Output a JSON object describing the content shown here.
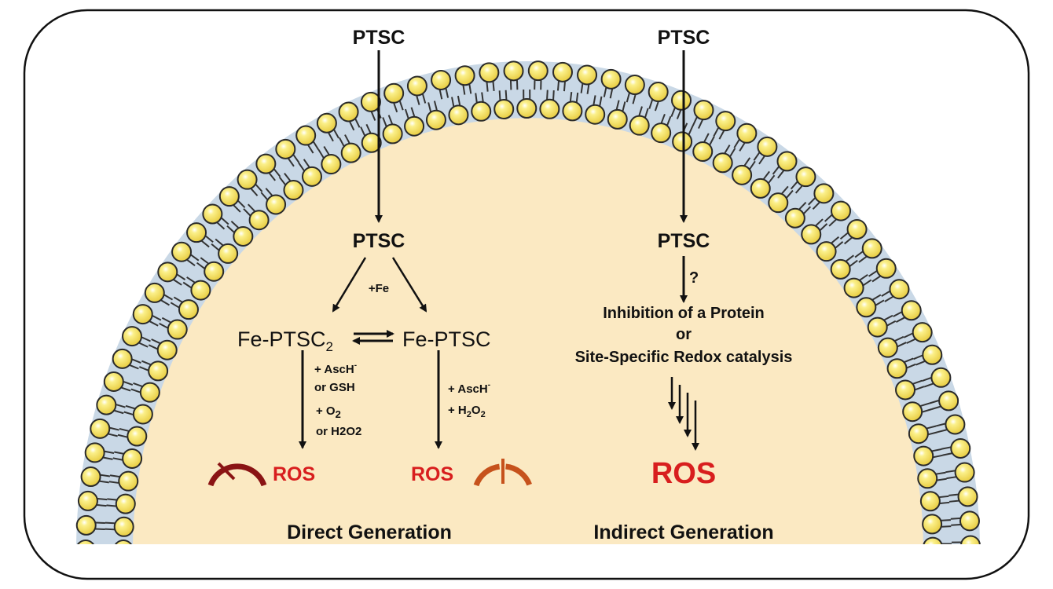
{
  "left_pathway": {
    "top_label": "PTSC",
    "inner_label": "PTSC",
    "fe_label": "+Fe",
    "complex_2": "Fe-PTSC",
    "complex_2_sub": "2",
    "complex_1": "Fe-PTSC",
    "cond_left": [
      "+ AscH",
      "or GSH",
      "+ O",
      "or H2O2"
    ],
    "cond_left_sup": "-",
    "cond_left_sub": "2",
    "cond_right": [
      "+ AscH",
      "+ H",
      "O"
    ],
    "cond_right_sup": "-",
    "cond_right_sub": "2",
    "ros_left": "ROS",
    "ros_right": "ROS",
    "caption": "Direct Generation"
  },
  "right_pathway": {
    "top_label": "PTSC",
    "inner_label": "PTSC",
    "question": "?",
    "mechanism": [
      "Inhibition of a Protein",
      "or",
      "Site-Specific Redox catalysis"
    ],
    "ros": "ROS",
    "caption": "Indirect Generation"
  },
  "icons": [
    "gauge-low-icon",
    "gauge-mid-icon"
  ],
  "colors": {
    "cytoplasm": "#fbe9c2",
    "membrane_band": "#c9d8e6",
    "lipid_head": "#f1dc55",
    "ros": "#d81e1e",
    "gauge_dark": "#8a1414",
    "gauge_orange": "#c6521c"
  }
}
